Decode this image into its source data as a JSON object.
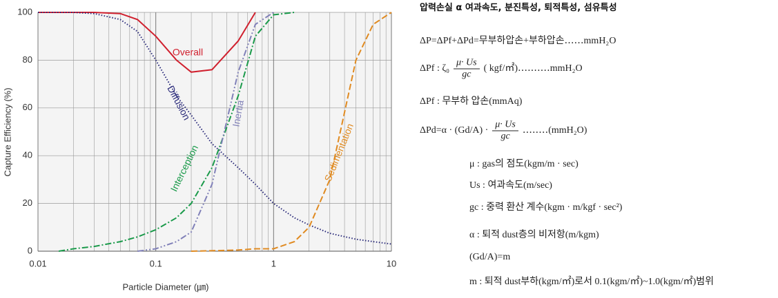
{
  "chart_data": {
    "type": "line",
    "x_label": "Particle Diameter (㎛)",
    "y_label": "Capture Efficiency (%)",
    "log_x": true,
    "grid": true,
    "minor_grid": true,
    "x": [
      0.01,
      0.015,
      0.02,
      0.03,
      0.05,
      0.07,
      0.1,
      0.15,
      0.2,
      0.3,
      0.5,
      0.7,
      1,
      1.5,
      2,
      3,
      5,
      7,
      10
    ],
    "series": [
      {
        "name": "Overall",
        "color": "#d0202e",
        "dash": "",
        "values": [
          100,
          100,
          100,
          100,
          99.5,
          97,
          90,
          80,
          75,
          76,
          88,
          100,
          null,
          null,
          null,
          null,
          null,
          null,
          null
        ]
      },
      {
        "name": "Diffusion",
        "color": "#2a2a7a",
        "dash": "1.5 2.5",
        "values": [
          100,
          100,
          100,
          99.5,
          97,
          92,
          80,
          65,
          57,
          45,
          35,
          28,
          20,
          14,
          11,
          7.5,
          5,
          4,
          3
        ]
      },
      {
        "name": "Interception",
        "color": "#1a9a4a",
        "dash": "9 3 2 3",
        "values": [
          null,
          0,
          1,
          2,
          4,
          6,
          9,
          14,
          20,
          35,
          65,
          90,
          99,
          100,
          null,
          null,
          null,
          null,
          null
        ]
      },
      {
        "name": "Inertia",
        "color": "#8080b8",
        "dash": "9 3 2 3 2 3",
        "values": [
          null,
          null,
          null,
          null,
          null,
          0,
          1,
          4,
          8,
          28,
          75,
          95,
          100,
          null,
          null,
          null,
          null,
          null,
          null
        ]
      },
      {
        "name": "Sedimentation",
        "color": "#e08a20",
        "dash": "9 4",
        "values": [
          null,
          null,
          null,
          null,
          null,
          null,
          null,
          null,
          0,
          0.2,
          0.5,
          1,
          1,
          4,
          10,
          30,
          80,
          95,
          100
        ]
      }
    ],
    "xlim": [
      0.01,
      10
    ],
    "xticks": [
      0.01,
      0.1,
      1,
      10
    ],
    "ylim": [
      0,
      100
    ],
    "yticks": [
      0,
      20,
      40,
      60,
      80,
      100
    ]
  },
  "document": {
    "title": "압력손실 α 여과속도, 분진특성, 퇴적특성, 섬유특성",
    "lines": [
      {
        "text": "ΔP=ΔPf+ΔPd=무부하압손+부하압손‥‥‥mmH₂O"
      },
      {
        "lead": "ΔPf :   ζ₀",
        "num": "μ· Us",
        "den": "gc",
        "tail": "( kgf/㎡)‥‥‥‥‥mmH₂O"
      },
      {
        "text": "ΔPf : 무부하 압손(mmAq)"
      },
      {
        "lead": "ΔPd=α · (Gd/A) ·",
        "num": "μ· Us",
        "den": "gc",
        "tail": "‥‥‥‥(mmH₂O)"
      },
      {
        "text": "μ : gas의 점도(kgm/m · sec)"
      },
      {
        "text": "Us : 여과속도(m/sec)"
      },
      {
        "text": "gc : 중력 환산 계수(kgm · m/kgf · sec²)"
      },
      {
        "text": "α : 퇴적 dust층의 비저항(m/kgm)"
      },
      {
        "text": "(Gd/A)=m"
      },
      {
        "text": "m : 퇴적 dust부하(kgm/㎡)로서 0.1(kgm/㎡)~1.0(kgm/㎡)범위"
      }
    ]
  }
}
